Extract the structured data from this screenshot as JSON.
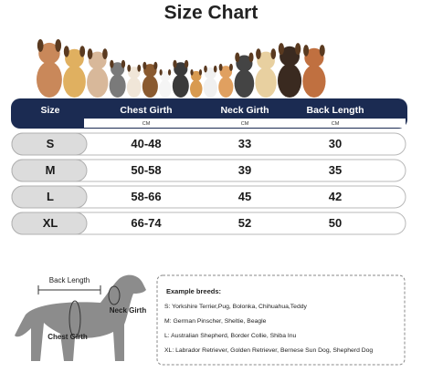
{
  "title": "Size Chart",
  "table": {
    "header": [
      "Size",
      "Chest Girth",
      "Neck Girth",
      "Back Length"
    ],
    "units": [
      "CM",
      "CM",
      "CM"
    ],
    "rows": [
      [
        "S",
        "40-48",
        "33",
        "30"
      ],
      [
        "M",
        "50-58",
        "39",
        "35"
      ],
      [
        "L",
        "58-66",
        "45",
        "42"
      ],
      [
        "XL",
        "66-74",
        "52",
        "50"
      ]
    ]
  },
  "diagram": {
    "back_length": "Back Length",
    "neck_girth": "Neck Girth",
    "chest_girth": "Chest Girth"
  },
  "breeds": {
    "title": "Example breeds:",
    "lines": [
      "S: Yorkshire Terrier,Pug, Bolonka, Chihuahua,Teddy",
      "M: German Pinscher, Sheltie, Beagle",
      "L: Australian Shepherd, Border Collie, Shiba Inu",
      "XL: Labrador Retriever, Golden Retriever, Bernese Sun Dog, Shepherd Dog"
    ]
  }
}
